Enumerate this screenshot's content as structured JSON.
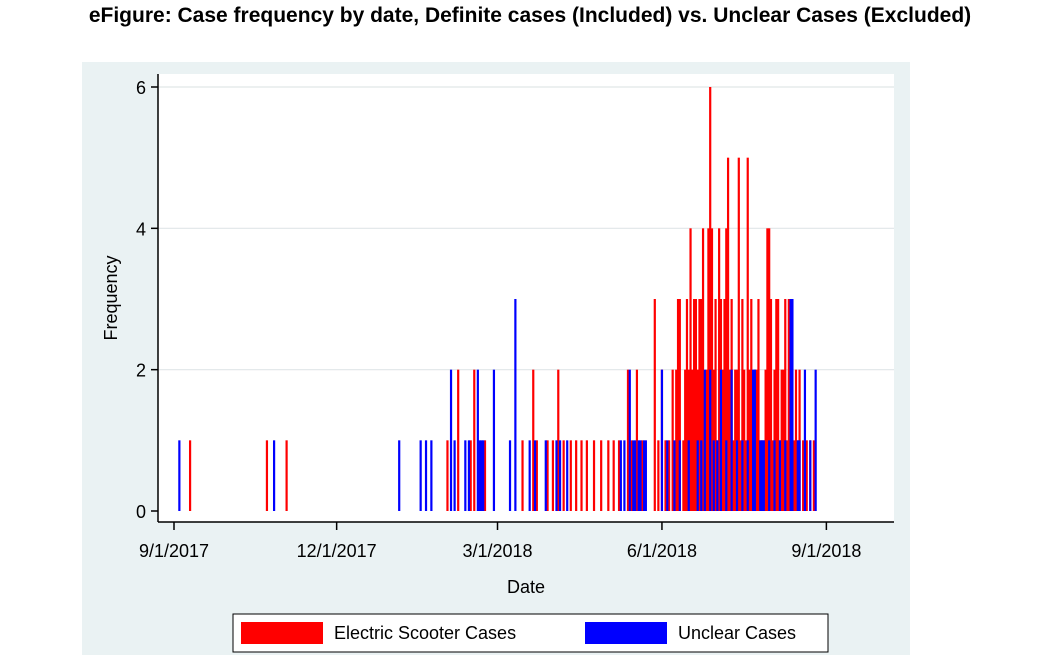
{
  "figure_title": "eFigure: Case frequency by date, Definite cases (Included) vs. Unclear Cases (Excluded)",
  "colors": {
    "electric": "#ff0000",
    "unclear": "#0000ff",
    "panel_bg": "#eaf2f3",
    "plot_bg": "#ffffff",
    "grid": "#e1e6e8"
  },
  "chart_data": {
    "type": "bar",
    "title": "",
    "xlabel": "Date",
    "ylabel": "Frequency",
    "xlim": [
      "2017-09-01",
      "2018-10-01"
    ],
    "ylim": [
      0,
      6.3
    ],
    "yticks": [
      0,
      2,
      4,
      6
    ],
    "xticks": [
      {
        "date": "2017-09-01",
        "label": "9/1/2017"
      },
      {
        "date": "2017-12-01",
        "label": "12/1/2017"
      },
      {
        "date": "2018-03-01",
        "label": "3/1/2018"
      },
      {
        "date": "2018-06-01",
        "label": "6/1/2018"
      },
      {
        "date": "2018-09-01",
        "label": "9/1/2018"
      }
    ],
    "grid": true,
    "legend_position": "bottom",
    "series": [
      {
        "name": "Electric Scooter Cases",
        "color": "#ff0000",
        "points": [
          [
            "2017-09-10",
            1
          ],
          [
            "2017-10-23",
            1
          ],
          [
            "2017-11-03",
            1
          ],
          [
            "2018-02-01",
            1
          ],
          [
            "2018-02-07",
            2
          ],
          [
            "2018-02-14",
            1
          ],
          [
            "2018-02-16",
            2
          ],
          [
            "2018-02-22",
            1
          ],
          [
            "2018-03-15",
            1
          ],
          [
            "2018-03-21",
            2
          ],
          [
            "2018-03-23",
            1
          ],
          [
            "2018-03-29",
            1
          ],
          [
            "2018-04-01",
            1
          ],
          [
            "2018-04-04",
            2
          ],
          [
            "2018-04-07",
            1
          ],
          [
            "2018-04-11",
            1
          ],
          [
            "2018-04-14",
            1
          ],
          [
            "2018-04-17",
            1
          ],
          [
            "2018-04-20",
            1
          ],
          [
            "2018-04-24",
            1
          ],
          [
            "2018-04-28",
            1
          ],
          [
            "2018-05-02",
            1
          ],
          [
            "2018-05-05",
            1
          ],
          [
            "2018-05-08",
            1
          ],
          [
            "2018-05-13",
            2
          ],
          [
            "2018-05-15",
            1
          ],
          [
            "2018-05-18",
            2
          ],
          [
            "2018-05-21",
            1
          ],
          [
            "2018-05-28",
            3
          ],
          [
            "2018-05-30",
            1
          ],
          [
            "2018-06-01",
            2
          ],
          [
            "2018-06-03",
            1
          ],
          [
            "2018-06-05",
            1
          ],
          [
            "2018-06-07",
            2
          ],
          [
            "2018-06-09",
            2
          ],
          [
            "2018-06-10",
            3
          ],
          [
            "2018-06-11",
            3
          ],
          [
            "2018-06-13",
            1
          ],
          [
            "2018-06-14",
            2
          ],
          [
            "2018-06-15",
            3
          ],
          [
            "2018-06-16",
            2
          ],
          [
            "2018-06-17",
            4
          ],
          [
            "2018-06-18",
            2
          ],
          [
            "2018-06-19",
            3
          ],
          [
            "2018-06-20",
            3
          ],
          [
            "2018-06-21",
            2
          ],
          [
            "2018-06-22",
            3
          ],
          [
            "2018-06-23",
            3
          ],
          [
            "2018-06-24",
            4
          ],
          [
            "2018-06-25",
            1
          ],
          [
            "2018-06-26",
            2
          ],
          [
            "2018-06-27",
            4
          ],
          [
            "2018-06-28",
            6
          ],
          [
            "2018-06-29",
            4
          ],
          [
            "2018-06-30",
            2
          ],
          [
            "2018-07-01",
            3
          ],
          [
            "2018-07-02",
            1
          ],
          [
            "2018-07-03",
            4
          ],
          [
            "2018-07-04",
            3
          ],
          [
            "2018-07-05",
            2
          ],
          [
            "2018-07-06",
            3
          ],
          [
            "2018-07-07",
            4
          ],
          [
            "2018-07-08",
            5
          ],
          [
            "2018-07-09",
            2
          ],
          [
            "2018-07-10",
            3
          ],
          [
            "2018-07-11",
            1
          ],
          [
            "2018-07-12",
            2
          ],
          [
            "2018-07-13",
            2
          ],
          [
            "2018-07-14",
            5
          ],
          [
            "2018-07-15",
            1
          ],
          [
            "2018-07-16",
            3
          ],
          [
            "2018-07-17",
            2
          ],
          [
            "2018-07-18",
            1
          ],
          [
            "2018-07-19",
            5
          ],
          [
            "2018-07-20",
            2
          ],
          [
            "2018-07-21",
            3
          ],
          [
            "2018-07-22",
            1
          ],
          [
            "2018-07-23",
            2
          ],
          [
            "2018-07-24",
            2
          ],
          [
            "2018-07-25",
            3
          ],
          [
            "2018-07-26",
            1
          ],
          [
            "2018-07-27",
            1
          ],
          [
            "2018-07-28",
            1
          ],
          [
            "2018-07-29",
            2
          ],
          [
            "2018-07-30",
            4
          ],
          [
            "2018-07-31",
            4
          ],
          [
            "2018-08-01",
            3
          ],
          [
            "2018-08-02",
            1
          ],
          [
            "2018-08-03",
            2
          ],
          [
            "2018-08-04",
            3
          ],
          [
            "2018-08-05",
            3
          ],
          [
            "2018-08-06",
            1
          ],
          [
            "2018-08-07",
            2
          ],
          [
            "2018-08-08",
            2
          ],
          [
            "2018-08-09",
            3
          ],
          [
            "2018-08-10",
            1
          ],
          [
            "2018-08-11",
            3
          ],
          [
            "2018-08-12",
            1
          ],
          [
            "2018-08-13",
            2
          ],
          [
            "2018-08-14",
            1
          ],
          [
            "2018-08-15",
            2
          ],
          [
            "2018-08-16",
            1
          ],
          [
            "2018-08-17",
            2
          ],
          [
            "2018-08-19",
            1
          ],
          [
            "2018-08-21",
            1
          ],
          [
            "2018-08-23",
            1
          ],
          [
            "2018-08-25",
            1
          ]
        ]
      },
      {
        "name": "Unclear Cases",
        "color": "#0000ff",
        "points": [
          [
            "2017-09-04",
            1
          ],
          [
            "2017-10-27",
            1
          ],
          [
            "2018-01-05",
            1
          ],
          [
            "2018-01-17",
            1
          ],
          [
            "2018-01-20",
            1
          ],
          [
            "2018-01-23",
            1
          ],
          [
            "2018-02-03",
            2
          ],
          [
            "2018-02-05",
            1
          ],
          [
            "2018-02-11",
            1
          ],
          [
            "2018-02-13",
            1
          ],
          [
            "2018-02-18",
            2
          ],
          [
            "2018-02-19",
            1
          ],
          [
            "2018-02-20",
            1
          ],
          [
            "2018-02-21",
            1
          ],
          [
            "2018-02-27",
            2
          ],
          [
            "2018-03-08",
            1
          ],
          [
            "2018-03-11",
            3
          ],
          [
            "2018-03-19",
            1
          ],
          [
            "2018-03-22",
            1
          ],
          [
            "2018-03-28",
            1
          ],
          [
            "2018-04-03",
            1
          ],
          [
            "2018-04-05",
            1
          ],
          [
            "2018-04-09",
            1
          ],
          [
            "2018-05-09",
            1
          ],
          [
            "2018-05-11",
            1
          ],
          [
            "2018-05-14",
            2
          ],
          [
            "2018-05-16",
            1
          ],
          [
            "2018-05-17",
            1
          ],
          [
            "2018-05-19",
            1
          ],
          [
            "2018-05-20",
            1
          ],
          [
            "2018-05-22",
            1
          ],
          [
            "2018-05-23",
            1
          ],
          [
            "2018-06-01",
            2
          ],
          [
            "2018-06-04",
            1
          ],
          [
            "2018-06-08",
            1
          ],
          [
            "2018-06-11",
            1
          ],
          [
            "2018-06-16",
            1
          ],
          [
            "2018-06-21",
            1
          ],
          [
            "2018-06-23",
            1
          ],
          [
            "2018-06-25",
            2
          ],
          [
            "2018-06-28",
            2
          ],
          [
            "2018-06-30",
            1
          ],
          [
            "2018-07-02",
            1
          ],
          [
            "2018-07-04",
            2
          ],
          [
            "2018-07-07",
            1
          ],
          [
            "2018-07-10",
            2
          ],
          [
            "2018-07-13",
            1
          ],
          [
            "2018-07-16",
            1
          ],
          [
            "2018-07-19",
            1
          ],
          [
            "2018-07-22",
            2
          ],
          [
            "2018-07-23",
            2
          ],
          [
            "2018-07-26",
            1
          ],
          [
            "2018-07-27",
            1
          ],
          [
            "2018-07-28",
            1
          ],
          [
            "2018-07-31",
            1
          ],
          [
            "2018-08-03",
            1
          ],
          [
            "2018-08-06",
            1
          ],
          [
            "2018-08-09",
            1
          ],
          [
            "2018-08-12",
            3
          ],
          [
            "2018-08-13",
            3
          ],
          [
            "2018-08-16",
            1
          ],
          [
            "2018-08-17",
            1
          ],
          [
            "2018-08-20",
            2
          ],
          [
            "2018-08-23",
            1
          ],
          [
            "2018-08-26",
            2
          ]
        ]
      }
    ]
  }
}
